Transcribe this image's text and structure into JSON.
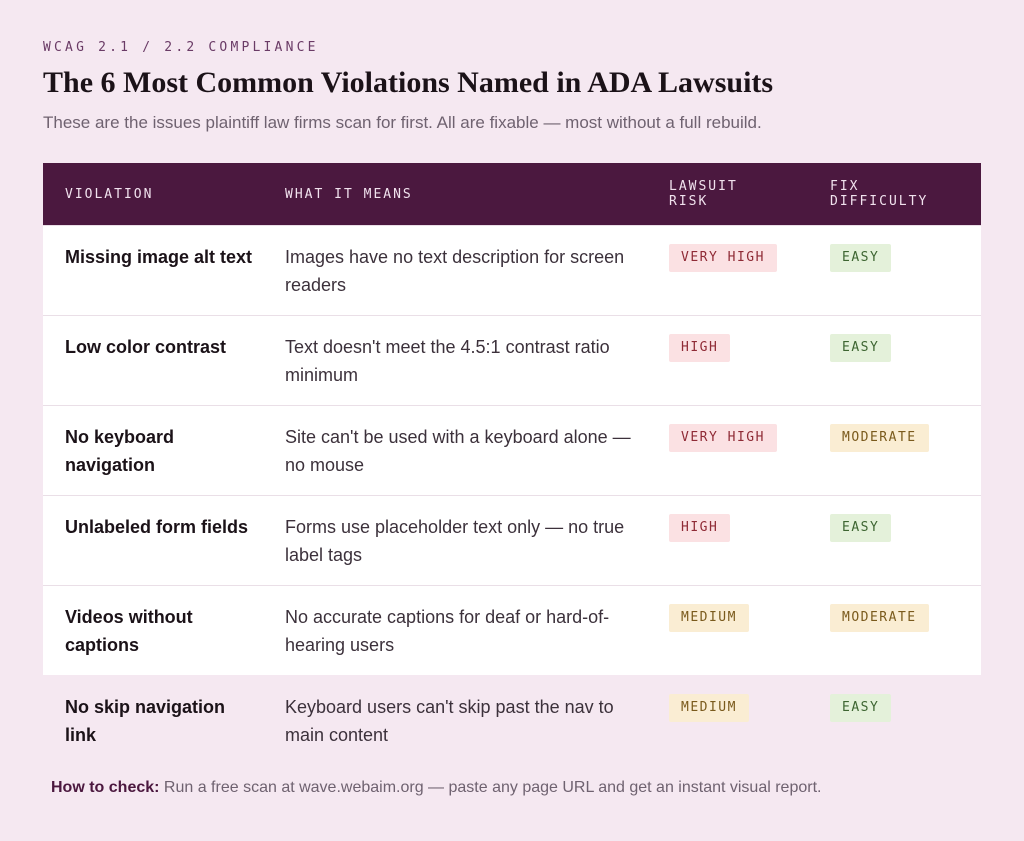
{
  "header": {
    "eyebrow": "WCAG 2.1 / 2.2 COMPLIANCE",
    "title": "The 6 Most Common Violations Named in ADA Lawsuits",
    "subtitle": "These are the issues plaintiff law firms scan for first. All are fixable — most without a full rebuild."
  },
  "table": {
    "columns": [
      "VIOLATION",
      "WHAT IT MEANS",
      "LAWSUIT RISK",
      "FIX DIFFICULTY"
    ],
    "rows": [
      {
        "violation": "Missing image alt text",
        "meaning": "Images have no text description for screen readers",
        "risk": "VERY HIGH",
        "fix": "EASY"
      },
      {
        "violation": "Low color contrast",
        "meaning": "Text doesn't meet the 4.5:1 contrast ratio minimum",
        "risk": "HIGH",
        "fix": "EASY"
      },
      {
        "violation": "No keyboard navigation",
        "meaning": "Site can't be used with a keyboard alone — no mouse",
        "risk": "VERY HIGH",
        "fix": "MODERATE"
      },
      {
        "violation": "Unlabeled form fields",
        "meaning": "Forms use placeholder text only — no true label tags",
        "risk": "HIGH",
        "fix": "EASY"
      },
      {
        "violation": "Videos without captions",
        "meaning": "No accurate captions for deaf or hard-of-hearing users",
        "risk": "MEDIUM",
        "fix": "MODERATE"
      },
      {
        "violation": "No skip navigation link",
        "meaning": "Keyboard users can't skip past the nav to main content",
        "risk": "MEDIUM",
        "fix": "EASY"
      }
    ]
  },
  "footer": {
    "label": "How to check:",
    "text": " Run a free scan at wave.webaim.org — paste any page URL and get an instant visual report."
  },
  "colors": {
    "page_background": "#f5e8f1",
    "header_background": "#4b183f",
    "risk_very_high": "#fbe1e3",
    "risk_medium": "#faedd3",
    "difficulty_easy": "#e4f1da",
    "difficulty_moderate": "#faedd3"
  }
}
